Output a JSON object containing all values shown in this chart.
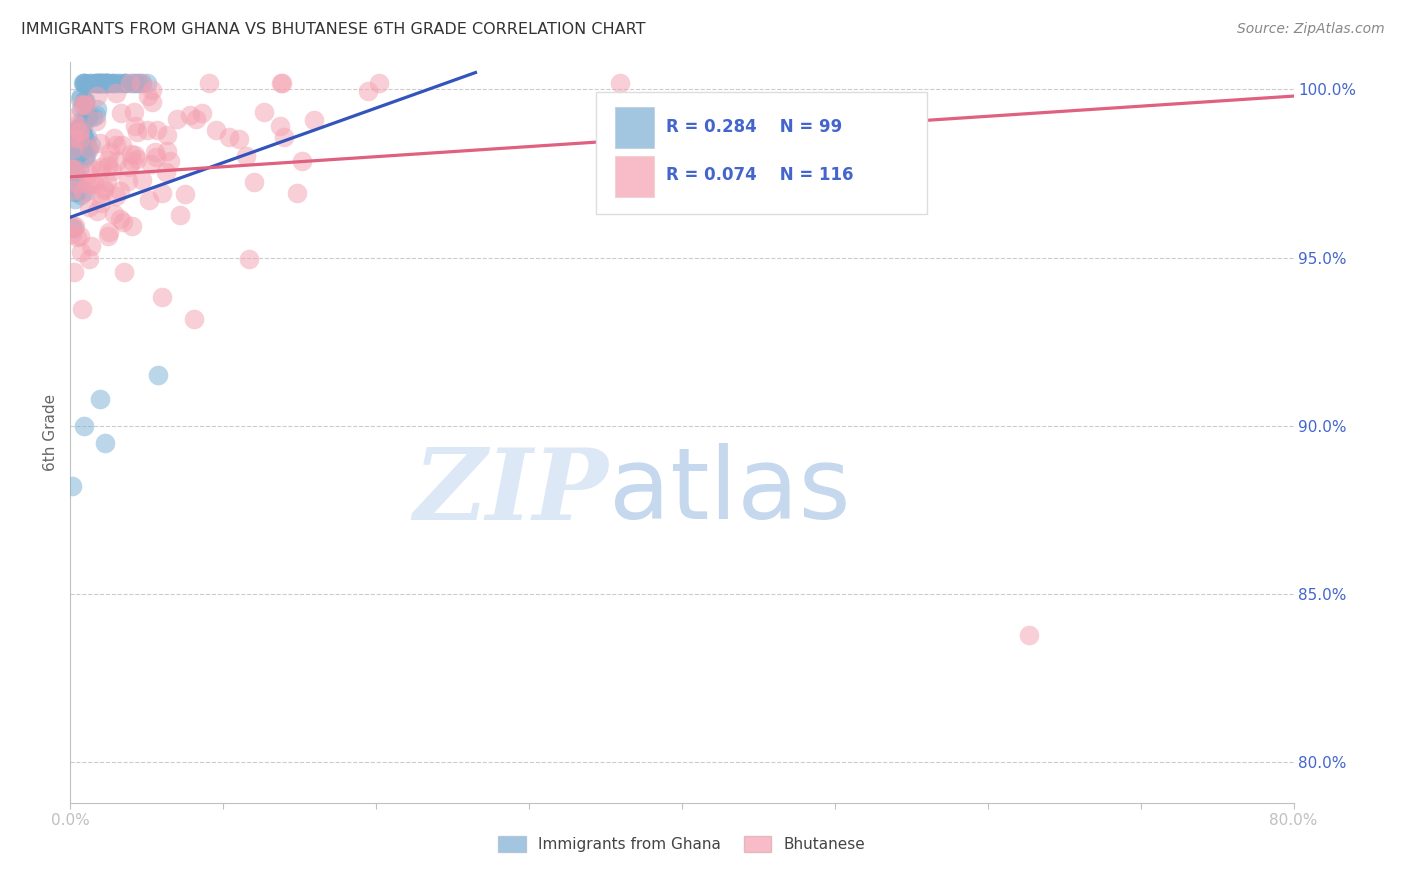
{
  "title": "IMMIGRANTS FROM GHANA VS BHUTANESE 6TH GRADE CORRELATION CHART",
  "source": "Source: ZipAtlas.com",
  "ylabel": "6th Grade",
  "watermark_zip": "ZIP",
  "watermark_atlas": "atlas",
  "xmin": 0.0,
  "xmax": 0.8,
  "ymin": 0.788,
  "ymax": 1.008,
  "yticks": [
    0.8,
    0.85,
    0.9,
    0.95,
    1.0
  ],
  "ytick_labels": [
    "80.0%",
    "85.0%",
    "90.0%",
    "95.0%",
    "100.0%"
  ],
  "xticks": [
    0.0,
    0.1,
    0.2,
    0.3,
    0.4,
    0.5,
    0.6,
    0.7,
    0.8
  ],
  "xtick_labels": [
    "0.0%",
    "",
    "",
    "",
    "",
    "",
    "",
    "",
    "80.0%"
  ],
  "legend_items": [
    "Immigrants from Ghana",
    "Bhutanese"
  ],
  "ghana_color": "#7bafd4",
  "bhutanese_color": "#f4a0b0",
  "ghana_R": 0.284,
  "ghana_N": 99,
  "bhutanese_R": 0.074,
  "bhutanese_N": 116,
  "ghana_line_x": [
    0.0,
    0.265
  ],
  "ghana_line_y": [
    0.962,
    1.005
  ],
  "bhutanese_line_x": [
    0.0,
    0.8
  ],
  "bhutanese_line_y": [
    0.974,
    0.998
  ],
  "background_color": "#ffffff",
  "grid_color": "#cccccc",
  "title_color": "#333333",
  "axis_color": "#c0c0c0",
  "tick_color": "#4466cc",
  "watermark_color": "#dce8f5",
  "ghana_line_color": "#3355bb",
  "bhutanese_line_color": "#e06080"
}
